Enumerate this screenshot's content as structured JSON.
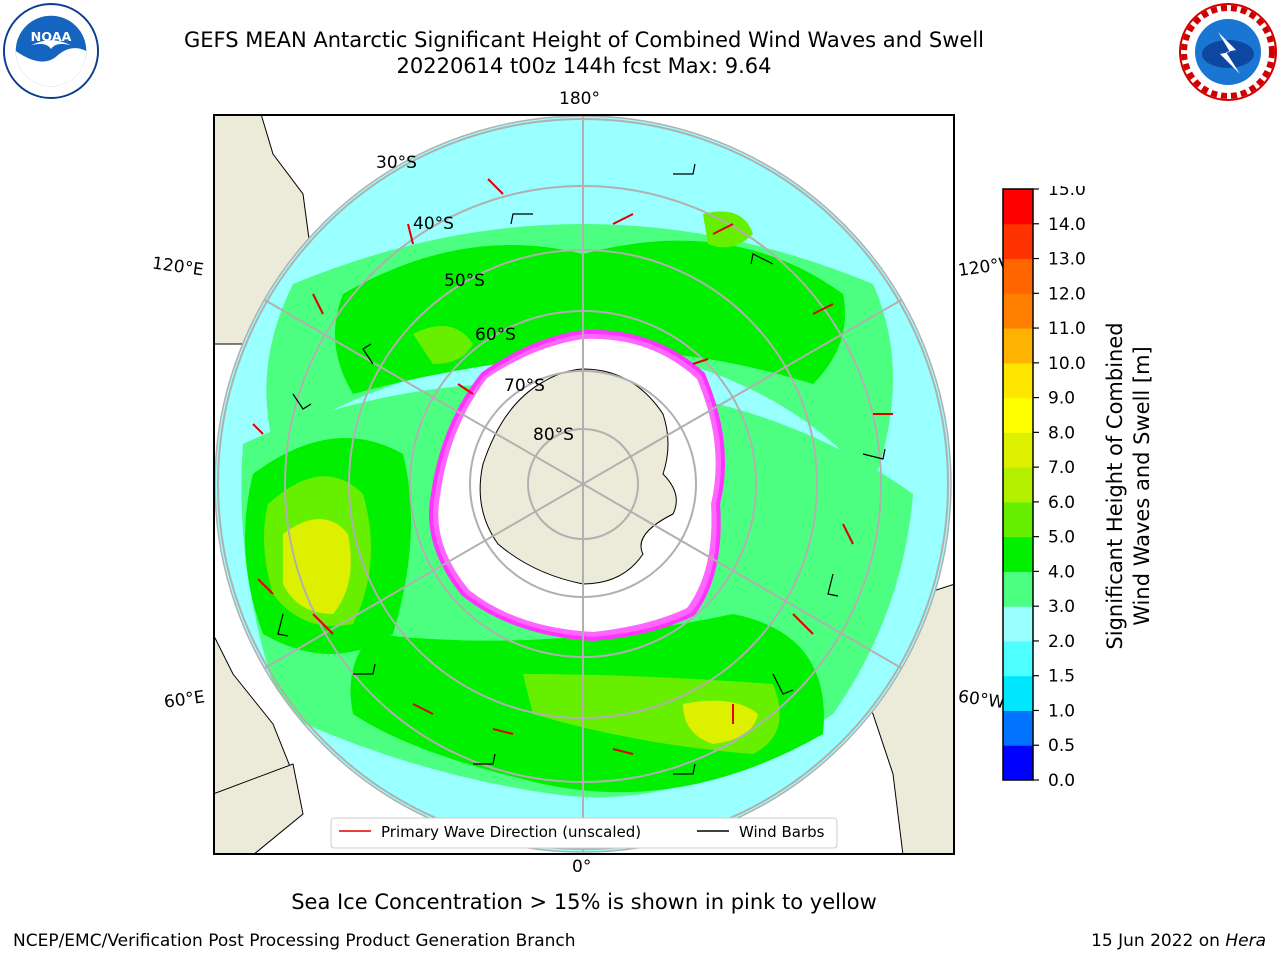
{
  "title": {
    "line1": "GEFS MEAN Antarctic Significant Height of Combined Wind Waves and Swell",
    "line2": "20220614 t00z 144h fcst   Max: 9.64"
  },
  "map": {
    "projection": "south-polar-stereographic",
    "longitude_labels": [
      "180°",
      "120°E",
      "120°W",
      "60°E",
      "60°W",
      "0°"
    ],
    "latitude_labels": [
      "30°S",
      "40°S",
      "50°S",
      "60°S",
      "70°S",
      "80°S"
    ],
    "legend": {
      "primary_wave_label": "Primary Wave Direction (unscaled)",
      "wind_barb_label": "Wind Barbs",
      "primary_wave_color": "#e00000",
      "wind_barb_color": "#000000"
    },
    "colors": {
      "land": "#ecebd9",
      "ice_sheet": "#ffffff",
      "sea_ice": "#ff33ff",
      "grid": "#b0b0b0"
    }
  },
  "colorbar": {
    "label_line1": "Significant Height of Combined",
    "label_line2": "Wind Waves and Swell [m]",
    "ticks": [
      "0.0",
      "0.5",
      "1.0",
      "1.5",
      "2.0",
      "3.0",
      "4.0",
      "5.0",
      "6.0",
      "7.0",
      "8.0",
      "9.0",
      "10.0",
      "11.0",
      "12.0",
      "13.0",
      "14.0",
      "15.0"
    ],
    "colors": [
      "#0000ff",
      "#0073ff",
      "#00e6ff",
      "#4dffff",
      "#99ffff",
      "#4dff80",
      "#00f000",
      "#66f000",
      "#b3f000",
      "#ddf000",
      "#ffff00",
      "#ffe600",
      "#ffb300",
      "#ff8000",
      "#ff6600",
      "#ff3300",
      "#ff0000"
    ]
  },
  "notes": {
    "sea_ice": "Sea Ice Concentration > 15% is shown in pink to yellow",
    "footer_left": "NCEP/EMC/Verification Post Processing Product Generation Branch",
    "footer_date": "15 Jun 2022 on ",
    "footer_machine": "Hera"
  }
}
